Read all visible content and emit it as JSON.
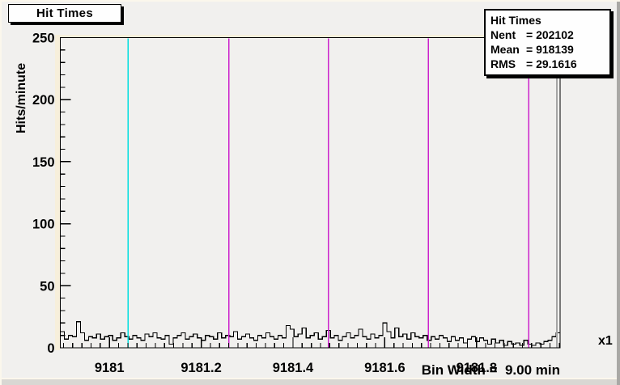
{
  "title_box": {
    "text": "Hit Times"
  },
  "stats_box": {
    "title": "Hit Times",
    "entries": [
      {
        "label": "Nent",
        "value": "= 202102"
      },
      {
        "label": "Mean",
        "value": "= 918139"
      },
      {
        "label": "RMS",
        "value": "= 29.1616"
      }
    ]
  },
  "axes": {
    "y_title": "Hits/minute",
    "x_title": "Bin Width =  9.00 min",
    "x_multiplier": "x1"
  },
  "colors": {
    "canvas_bg": "#f1f0ee",
    "frame_line": "#000000",
    "histogram_line": "#000000",
    "cyan_line": "#00dede",
    "magenta_line": "#cc22cc",
    "gray_line": "#a5a5a5"
  },
  "chart_data": {
    "type": "bar",
    "style": "root-step-histogram",
    "title": "Hit Times",
    "xlabel": "Bin Width =  9.00 min",
    "ylabel": "Hits/minute",
    "x_axis_multiplier": "x1",
    "xlim": [
      9180.893,
      9181.982
    ],
    "ylim": [
      0,
      250
    ],
    "grid": false,
    "x_major_ticks": [
      {
        "value": 9181.0,
        "label": "9181"
      },
      {
        "value": 9181.2,
        "label": "9181.2"
      },
      {
        "value": 9181.4,
        "label": "9181.4"
      },
      {
        "value": 9181.6,
        "label": "9181.6"
      },
      {
        "value": 9181.8,
        "label": "9181.8"
      }
    ],
    "x_minor_step": 0.02,
    "y_major_ticks": [
      {
        "value": 0,
        "label": "0"
      },
      {
        "value": 50,
        "label": "50"
      },
      {
        "value": 100,
        "label": "100"
      },
      {
        "value": 150,
        "label": "150"
      },
      {
        "value": 200,
        "label": "200"
      },
      {
        "value": 250,
        "label": "250"
      }
    ],
    "y_minor_step": 10,
    "stats": {
      "entries": 202102,
      "mean": 918139,
      "rms": 29.1616
    },
    "values": [
      13,
      7,
      10,
      9,
      21,
      12,
      6,
      9,
      8,
      11,
      7,
      9,
      10,
      6,
      8,
      12,
      9,
      7,
      10,
      8,
      6,
      11,
      9,
      12,
      8,
      7,
      10,
      3,
      8,
      10,
      12,
      7,
      9,
      11,
      8,
      6,
      10,
      9,
      7,
      12,
      8,
      10,
      9,
      13,
      7,
      9,
      11,
      8,
      6,
      10,
      8,
      12,
      9,
      7,
      10,
      8,
      18,
      15,
      9,
      11,
      16,
      8,
      10,
      12,
      7,
      9,
      14,
      8,
      10,
      6,
      9,
      12,
      8,
      10,
      15,
      9,
      7,
      11,
      8,
      10,
      20,
      13,
      8,
      16,
      9,
      11,
      7,
      12,
      9,
      8,
      10,
      6,
      9,
      7,
      10,
      8,
      5,
      9,
      6,
      8,
      4,
      7,
      9,
      5,
      8,
      6,
      3,
      7,
      4,
      6,
      2,
      5,
      3,
      4,
      2,
      6,
      3,
      2,
      4,
      3,
      5,
      6,
      9,
      12
    ],
    "marker_lines": [
      {
        "x": 9181.041,
        "color": "#00dede",
        "name": "cyan-marker-line"
      },
      {
        "x": 9181.26,
        "color": "#cc22cc",
        "name": "magenta-marker-line"
      },
      {
        "x": 9181.477,
        "color": "#cc22cc",
        "name": "magenta-marker-line"
      },
      {
        "x": 9181.695,
        "color": "#cc22cc",
        "name": "magenta-marker-line"
      },
      {
        "x": 9181.914,
        "color": "#cc22cc",
        "name": "magenta-marker-line"
      },
      {
        "x": 9181.975,
        "color": "#a5a5a5",
        "name": "gray-marker-line"
      }
    ]
  }
}
